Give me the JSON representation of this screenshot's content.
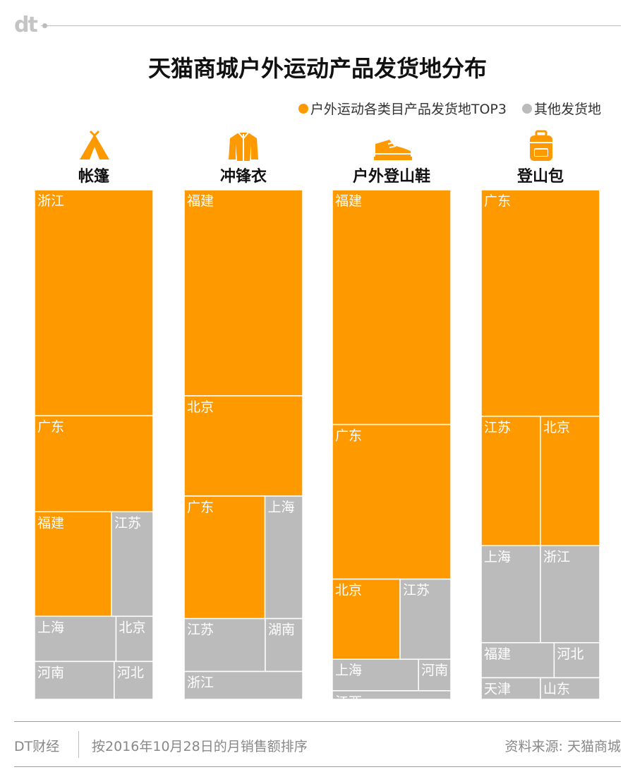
{
  "brand": "dt",
  "title": "天猫商城户外运动产品发货地分布",
  "legend": [
    {
      "label": "户外运动各类目产品发货地TOP3",
      "color": "#ff9900"
    },
    {
      "label": "其他发货地",
      "color": "#bbbbbb"
    }
  ],
  "colors": {
    "top3": "#ff9900",
    "other": "#bbbbbb"
  },
  "chart_data": {
    "type": "treemap",
    "title": "天猫商城户外运动产品发货地分布",
    "categories": [
      {
        "name": "帐篷",
        "icon": "tent-icon",
        "regions": [
          {
            "name": "浙江",
            "share": 0.4,
            "top3": true
          },
          {
            "name": "广东",
            "share": 0.17,
            "top3": true
          },
          {
            "name": "福建",
            "share": 0.12,
            "top3": true
          },
          {
            "name": "江苏",
            "share": 0.065,
            "top3": false
          },
          {
            "name": "上海",
            "share": 0.055,
            "top3": false
          },
          {
            "name": "北京",
            "share": 0.025,
            "top3": false
          },
          {
            "name": "河南",
            "share": 0.045,
            "top3": false
          },
          {
            "name": "河北",
            "share": 0.022,
            "top3": false
          }
        ]
      },
      {
        "name": "冲锋衣",
        "icon": "jacket-icon",
        "regions": [
          {
            "name": "福建",
            "share": 0.37,
            "top3": true
          },
          {
            "name": "北京",
            "share": 0.18,
            "top3": true
          },
          {
            "name": "广东",
            "share": 0.15,
            "top3": true
          },
          {
            "name": "上海",
            "share": 0.07,
            "top3": false
          },
          {
            "name": "江苏",
            "share": 0.065,
            "top3": false
          },
          {
            "name": "湖南",
            "share": 0.03,
            "top3": false
          },
          {
            "name": "浙江",
            "share": 0.05,
            "top3": false
          }
        ]
      },
      {
        "name": "户外登山鞋",
        "icon": "hiking-shoe-icon",
        "regions": [
          {
            "name": "福建",
            "share": 0.41,
            "top3": true
          },
          {
            "name": "广东",
            "share": 0.27,
            "top3": true
          },
          {
            "name": "北京",
            "share": 0.08,
            "top3": true
          },
          {
            "name": "江苏",
            "share": 0.06,
            "top3": false
          },
          {
            "name": "上海",
            "share": 0.04,
            "top3": false
          },
          {
            "name": "河南",
            "share": 0.015,
            "top3": false
          },
          {
            "name": "江西",
            "share": 0.015,
            "top3": false
          }
        ]
      },
      {
        "name": "登山包",
        "icon": "backpack-icon",
        "regions": [
          {
            "name": "广东",
            "share": 0.42,
            "top3": true
          },
          {
            "name": "江苏",
            "share": 0.12,
            "top3": true
          },
          {
            "name": "北京",
            "share": 0.12,
            "top3": true
          },
          {
            "name": "上海",
            "share": 0.09,
            "top3": false
          },
          {
            "name": "浙江",
            "share": 0.09,
            "top3": false
          },
          {
            "name": "福建",
            "share": 0.04,
            "top3": false
          },
          {
            "name": "河北",
            "share": 0.025,
            "top3": false
          },
          {
            "name": "天津",
            "share": 0.02,
            "top3": false
          },
          {
            "name": "山东",
            "share": 0.02,
            "top3": false
          }
        ]
      }
    ]
  },
  "footer": {
    "source_brand": "DT财经",
    "note": "按2016年10月28日的月销售额排序",
    "source": "资料来源: 天猫商城"
  }
}
